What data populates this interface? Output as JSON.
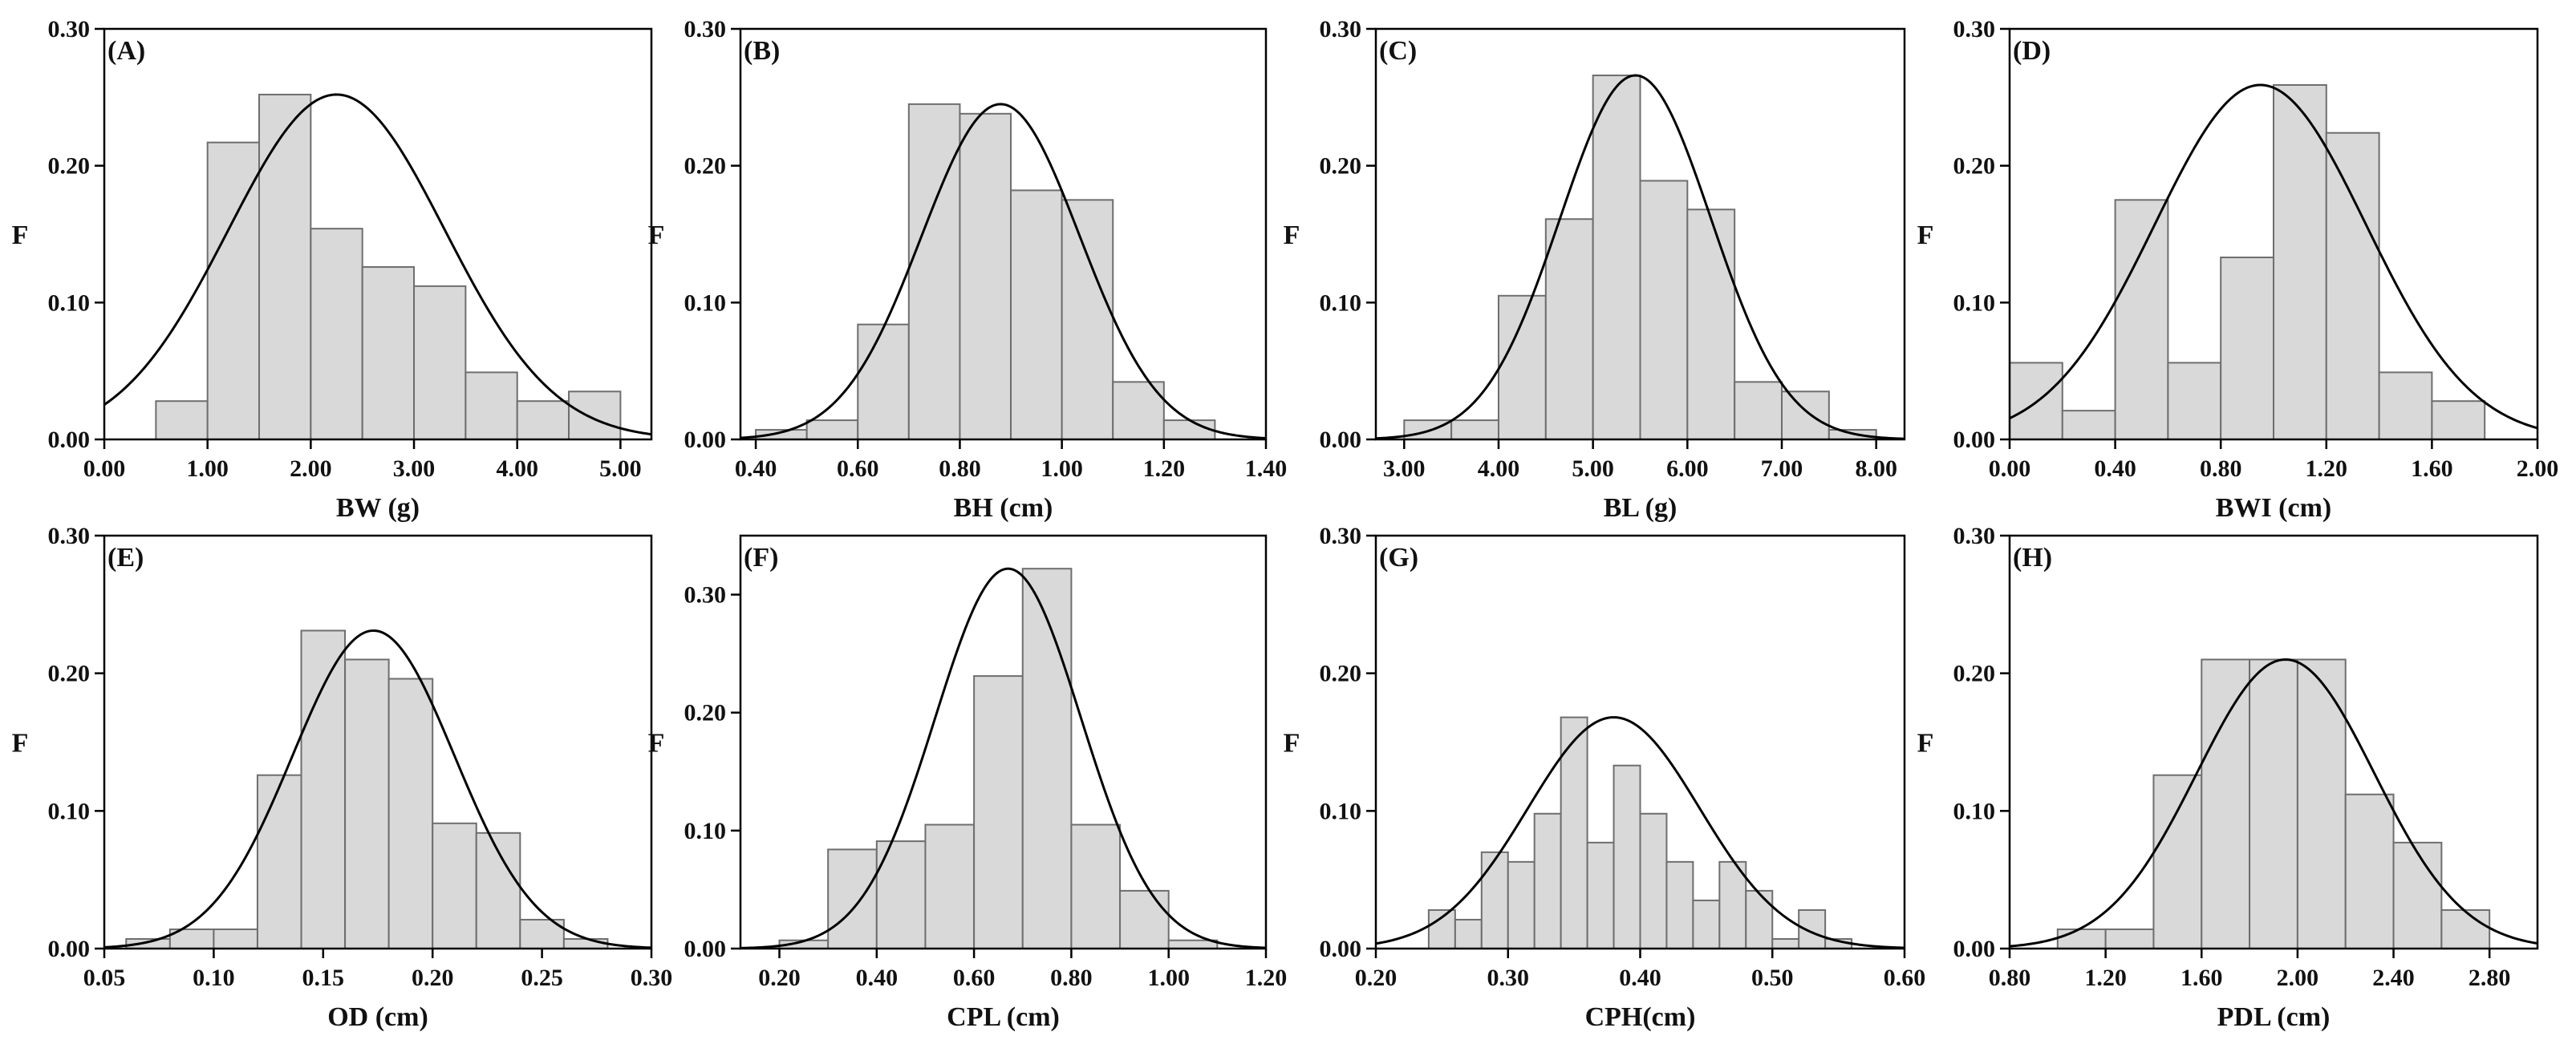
{
  "chart_data": [
    {
      "type": "bar",
      "panel": "(A)",
      "xlabel": "BW (g)",
      "ylabel": "F",
      "xlim": [
        0,
        5.3
      ],
      "ylim": [
        0,
        0.3
      ],
      "xticks": [
        0,
        1,
        2,
        3,
        4,
        5
      ],
      "xtick_labels": [
        "0.00",
        "1.00",
        "2.00",
        "3.00",
        "4.00",
        "5.00"
      ],
      "yticks": [
        0,
        0.1,
        0.2,
        0.3
      ],
      "ytick_labels": [
        "0.00",
        "0.10",
        "0.20",
        "0.30"
      ],
      "bin_start": 0.5,
      "bin_width": 0.5,
      "values": [
        0.028,
        0.217,
        0.252,
        0.154,
        0.126,
        0.112,
        0.049,
        0.028,
        0.035
      ],
      "normal_curve": {
        "mean": 2.25,
        "sd": 1.05,
        "peak": 0.252
      }
    },
    {
      "type": "bar",
      "panel": "(B)",
      "xlabel": "BH (cm)",
      "ylabel": "F",
      "xlim": [
        0.37,
        1.4
      ],
      "ylim": [
        0,
        0.3
      ],
      "xticks": [
        0.4,
        0.6,
        0.8,
        1.0,
        1.2,
        1.4
      ],
      "xtick_labels": [
        "0.40",
        "0.60",
        "0.80",
        "1.00",
        "1.20",
        "1.40"
      ],
      "yticks": [
        0,
        0.1,
        0.2,
        0.3
      ],
      "ytick_labels": [
        "0.00",
        "0.10",
        "0.20",
        "0.30"
      ],
      "bin_start": 0.4,
      "bin_width": 0.1,
      "values": [
        0.007,
        0.014,
        0.084,
        0.245,
        0.238,
        0.182,
        0.175,
        0.042,
        0.014
      ],
      "normal_curve": {
        "mean": 0.88,
        "sd": 0.155,
        "peak": 0.245
      }
    },
    {
      "type": "bar",
      "panel": "(C)",
      "xlabel": "BL (g)",
      "ylabel": "F",
      "xlim": [
        2.7,
        8.3
      ],
      "ylim": [
        0,
        0.3
      ],
      "xticks": [
        3,
        4,
        5,
        6,
        7,
        8
      ],
      "xtick_labels": [
        "3.00",
        "4.00",
        "5.00",
        "6.00",
        "7.00",
        "8.00"
      ],
      "yticks": [
        0,
        0.1,
        0.2,
        0.3
      ],
      "ytick_labels": [
        "0.00",
        "0.10",
        "0.20",
        "0.30"
      ],
      "bin_start": 3.0,
      "bin_width": 0.5,
      "values": [
        0.014,
        0.014,
        0.105,
        0.161,
        0.266,
        0.189,
        0.168,
        0.042,
        0.035,
        0.007
      ],
      "normal_curve": {
        "mean": 5.45,
        "sd": 0.8,
        "peak": 0.266
      }
    },
    {
      "type": "bar",
      "panel": "(D)",
      "xlabel": "BWI (cm)",
      "ylabel": "F",
      "xlim": [
        0,
        2.0
      ],
      "ylim": [
        0,
        0.3
      ],
      "xticks": [
        0,
        0.4,
        0.8,
        1.2,
        1.6,
        2.0
      ],
      "xtick_labels": [
        "0.00",
        "0.40",
        "0.80",
        "1.20",
        "1.60",
        "2.00"
      ],
      "yticks": [
        0,
        0.1,
        0.2,
        0.3
      ],
      "ytick_labels": [
        "0.00",
        "0.10",
        "0.20",
        "0.30"
      ],
      "bin_start": 0.0,
      "bin_width": 0.2,
      "values": [
        0.056,
        0.021,
        0.175,
        0.056,
        0.133,
        0.259,
        0.224,
        0.049,
        0.028
      ],
      "normal_curve": {
        "mean": 0.95,
        "sd": 0.4,
        "peak": 0.259
      }
    },
    {
      "type": "bar",
      "panel": "(E)",
      "xlabel": "OD (cm)",
      "ylabel": "F",
      "xlim": [
        0.05,
        0.3
      ],
      "ylim": [
        0,
        0.3
      ],
      "xticks": [
        0.05,
        0.1,
        0.15,
        0.2,
        0.25,
        0.3
      ],
      "xtick_labels": [
        "0.05",
        "0.10",
        "0.15",
        "0.20",
        "0.25",
        "0.30"
      ],
      "yticks": [
        0,
        0.1,
        0.2,
        0.3
      ],
      "ytick_labels": [
        "0.00",
        "0.10",
        "0.20",
        "0.30"
      ],
      "bin_start": 0.06,
      "bin_width": 0.02,
      "values": [
        0.007,
        0.014,
        0.014,
        0.126,
        0.231,
        0.21,
        0.196,
        0.091,
        0.084,
        0.021,
        0.007
      ],
      "normal_curve": {
        "mean": 0.173,
        "sd": 0.037,
        "peak": 0.231
      }
    },
    {
      "type": "bar",
      "panel": "(F)",
      "xlabel": "CPL (cm)",
      "ylabel": "F",
      "xlim": [
        0.12,
        1.2
      ],
      "ylim": [
        0,
        0.35
      ],
      "xticks": [
        0.2,
        0.4,
        0.6,
        0.8,
        1.0,
        1.2
      ],
      "xtick_labels": [
        "0.20",
        "0.40",
        "0.60",
        "0.80",
        "1.00",
        "1.20"
      ],
      "yticks": [
        0,
        0.1,
        0.2,
        0.3
      ],
      "ytick_labels": [
        "0.00",
        "0.10",
        "0.20",
        "0.30"
      ],
      "bin_start": 0.2,
      "bin_width": 0.1,
      "values": [
        0.007,
        0.084,
        0.091,
        0.105,
        0.231,
        0.322,
        0.105,
        0.049,
        0.007
      ],
      "normal_curve": {
        "mean": 0.67,
        "sd": 0.15,
        "peak": 0.322
      }
    },
    {
      "type": "bar",
      "panel": "(G)",
      "xlabel": "CPH(cm)",
      "ylabel": "F",
      "xlim": [
        0.2,
        0.6
      ],
      "ylim": [
        0,
        0.3
      ],
      "xticks": [
        0.2,
        0.3,
        0.4,
        0.5,
        0.6
      ],
      "xtick_labels": [
        "0.20",
        "0.30",
        "0.40",
        "0.50",
        "0.60"
      ],
      "yticks": [
        0,
        0.1,
        0.2,
        0.3
      ],
      "ytick_labels": [
        "0.00",
        "0.10",
        "0.20",
        "0.30"
      ],
      "bin_start": 0.24,
      "bin_width": 0.02,
      "values": [
        0.028,
        0.021,
        0.07,
        0.063,
        0.098,
        0.168,
        0.077,
        0.133,
        0.098,
        0.063,
        0.035,
        0.063,
        0.042,
        0.007,
        0.028,
        0.007
      ],
      "normal_curve": {
        "mean": 0.38,
        "sd": 0.065,
        "peak": 0.168
      }
    },
    {
      "type": "bar",
      "panel": "(H)",
      "xlabel": "PDL (cm)",
      "ylabel": "F",
      "xlim": [
        0.8,
        3.0
      ],
      "ylim": [
        0,
        0.3
      ],
      "xticks": [
        0.8,
        1.2,
        1.6,
        2.0,
        2.4,
        2.8
      ],
      "xtick_labels": [
        "0.80",
        "1.20",
        "1.60",
        "2.00",
        "2.40",
        "2.80"
      ],
      "yticks": [
        0,
        0.1,
        0.2,
        0.3
      ],
      "ytick_labels": [
        "0.00",
        "0.10",
        "0.20",
        "0.30"
      ],
      "bin_start": 1.0,
      "bin_width": 0.2,
      "values": [
        0.014,
        0.014,
        0.126,
        0.21,
        0.21,
        0.21,
        0.112,
        0.077,
        0.028
      ],
      "normal_curve": {
        "mean": 1.95,
        "sd": 0.37,
        "peak": 0.21
      }
    }
  ],
  "colors": {
    "bar_fill": "#d9d9d9",
    "bar_stroke": "#6e6e6e",
    "curve": "#000000",
    "axis": "#000000"
  }
}
